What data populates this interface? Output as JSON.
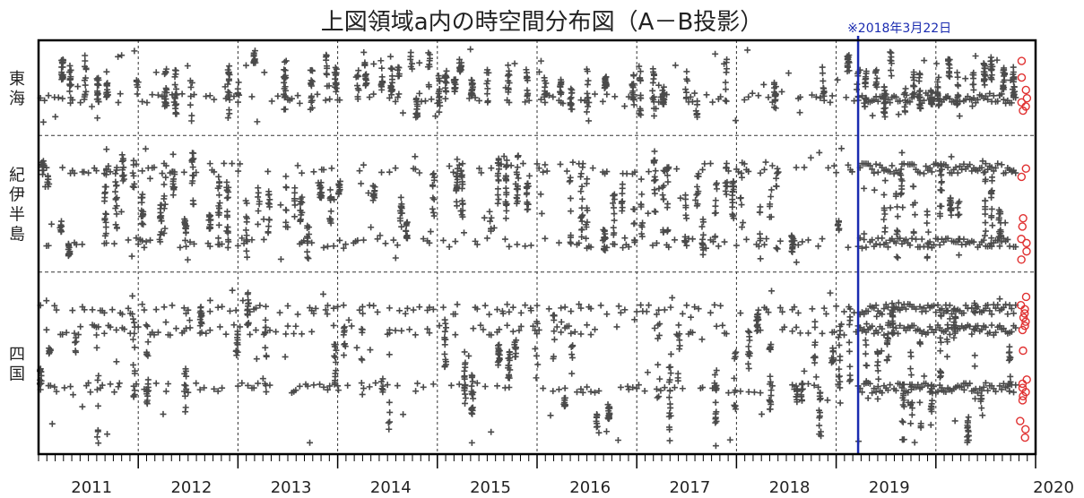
{
  "chart_data": {
    "type": "scatter",
    "title": "上図領域a内の時空間分布図（A－B投影）",
    "xlabel": "",
    "ylabel": "",
    "xlim": [
      2010.0,
      2020.0
    ],
    "x_tick_labels": [
      "2011",
      "2012",
      "2013",
      "2014",
      "2015",
      "2016",
      "2017",
      "2018",
      "2019",
      "2020"
    ],
    "x_tick_years": [
      2011,
      2012,
      2013,
      2014,
      2015,
      2016,
      2017,
      2018,
      2019,
      2020
    ],
    "regions": [
      {
        "label": "東海",
        "range": [
          0.0,
          0.23
        ]
      },
      {
        "label": "紀伊半島",
        "range": [
          0.23,
          0.56
        ]
      },
      {
        "label": "四国",
        "range": [
          0.56,
          1.0
        ]
      }
    ],
    "annotation": {
      "text": "※2018年3月22日",
      "x": 2018.22
    },
    "marker_colors": {
      "past": "#4a4a4a",
      "recent": "#e03030",
      "annotation_line": "#1a2bb0"
    },
    "grid": "dashed",
    "series": [
      {
        "marker": "plus",
        "x_range": [
          2010.0,
          2019.8
        ]
      },
      {
        "marker": "circle",
        "x_range": [
          2019.8,
          2019.95
        ]
      }
    ]
  }
}
